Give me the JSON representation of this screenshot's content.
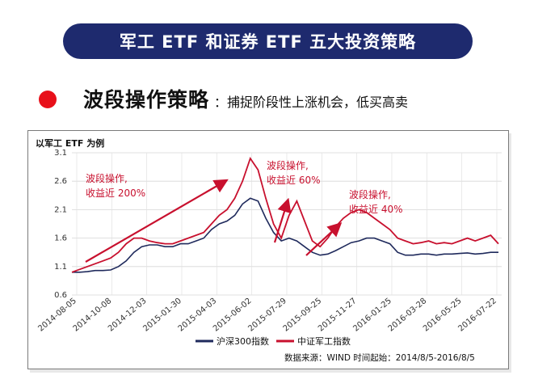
{
  "banner": {
    "title": "军工 ETF 和证券 ETF 五大投资策略"
  },
  "strategy": {
    "name": "波段操作策略",
    "desc": "：捕捉阶段性上涨机会，低买高卖"
  },
  "chart_data": {
    "type": "line",
    "subtitle": "以军工 ETF 为例",
    "ylim": [
      0.6,
      3.1
    ],
    "yticks": [
      "0.6",
      "1.1",
      "1.6",
      "2.1",
      "2.6",
      "3.1"
    ],
    "x_tick_labels": [
      "2014-08-05",
      "2014-10-08",
      "2014-12-03",
      "2015-01-30",
      "2015-04-03",
      "2015-06-02",
      "2015-07-29",
      "2015-09-25",
      "2015-11-27",
      "2016-01-25",
      "2016-03-28",
      "2016-05-25",
      "2016-07-22"
    ],
    "grid": true,
    "legend_position": "bottom-center",
    "series": [
      {
        "name": "沪深300指数",
        "color": "#1f2a5c",
        "values": [
          1.0,
          1.0,
          1.01,
          1.03,
          1.03,
          1.04,
          1.1,
          1.2,
          1.35,
          1.45,
          1.48,
          1.48,
          1.45,
          1.45,
          1.5,
          1.5,
          1.55,
          1.6,
          1.75,
          1.85,
          1.9,
          2.0,
          2.2,
          2.3,
          2.25,
          1.95,
          1.7,
          1.55,
          1.6,
          1.55,
          1.45,
          1.35,
          1.3,
          1.32,
          1.38,
          1.45,
          1.52,
          1.55,
          1.6,
          1.6,
          1.55,
          1.5,
          1.35,
          1.3,
          1.3,
          1.32,
          1.32,
          1.3,
          1.32,
          1.32,
          1.33,
          1.34,
          1.32,
          1.33,
          1.35,
          1.35
        ]
      },
      {
        "name": "中证军工指数",
        "color": "#c8102e",
        "values": [
          1.0,
          1.05,
          1.1,
          1.15,
          1.2,
          1.25,
          1.35,
          1.5,
          1.6,
          1.6,
          1.55,
          1.52,
          1.5,
          1.5,
          1.55,
          1.6,
          1.65,
          1.7,
          1.85,
          2.0,
          2.1,
          2.3,
          2.6,
          3.0,
          2.8,
          2.3,
          1.85,
          1.6,
          2.0,
          2.25,
          1.9,
          1.55,
          1.45,
          1.6,
          1.8,
          1.95,
          2.05,
          2.1,
          2.05,
          1.95,
          1.85,
          1.75,
          1.6,
          1.55,
          1.5,
          1.52,
          1.55,
          1.5,
          1.52,
          1.5,
          1.55,
          1.6,
          1.55,
          1.6,
          1.65,
          1.5
        ]
      }
    ],
    "annotations": [
      {
        "line1": "波段操作,",
        "line2": "收益近 200%",
        "color": "#c8102e"
      },
      {
        "line1": "波段操作,",
        "line2": "收益近 60%",
        "color": "#c8102e"
      },
      {
        "line1": "波段操作,",
        "line2": "收益近 40%",
        "color": "#c8102e"
      }
    ],
    "source_note": "数据来源：WIND 时间起始：2014/8/5-2016/8/5"
  }
}
